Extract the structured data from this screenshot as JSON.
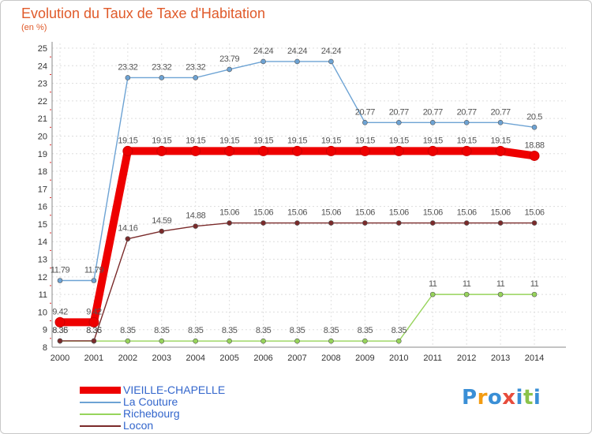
{
  "chart_data": {
    "type": "line",
    "title": "Evolution du Taux de Taxe d'Habitation",
    "subtitle": "(en %)",
    "xlabel": "",
    "ylabel": "",
    "categories": [
      "2000",
      "2001",
      "2002",
      "2003",
      "2004",
      "2005",
      "2006",
      "2007",
      "2008",
      "2009",
      "2010",
      "2011",
      "2012",
      "2013",
      "2014"
    ],
    "ylim": [
      8,
      25
    ],
    "yticks": [
      "8",
      "9",
      "10",
      "11",
      "12",
      "13",
      "14",
      "15",
      "16",
      "17",
      "18",
      "19",
      "20",
      "21",
      "22",
      "23",
      "24",
      "25"
    ],
    "grid": true,
    "legend_position": "bottom-left",
    "series": [
      {
        "name": "La Couture",
        "color": "#6da3d4",
        "values": [
          11.79,
          11.79,
          23.32,
          23.32,
          23.32,
          23.79,
          24.24,
          24.24,
          24.24,
          20.77,
          20.77,
          20.77,
          20.77,
          20.77,
          20.5
        ],
        "labels": [
          "11.79",
          "11.79",
          "23.32",
          "23.32",
          "23.32",
          "23.79",
          "24.24",
          "24.24",
          "24.24",
          "20.77",
          "20.77",
          "20.77",
          "20.77",
          "20.77",
          "20.5"
        ]
      },
      {
        "name": "Richebourg",
        "color": "#97d45b",
        "values": [
          8.35,
          8.35,
          8.35,
          8.35,
          8.35,
          8.35,
          8.35,
          8.35,
          8.35,
          8.35,
          8.35,
          11,
          11,
          11,
          11
        ],
        "labels": [
          "8.35",
          "8.35",
          "8.35",
          "8.35",
          "8.35",
          "8.35",
          "8.35",
          "8.35",
          "8.35",
          "8.35",
          "8.35",
          "11",
          "11",
          "11",
          "11"
        ]
      },
      {
        "name": "Locon",
        "color": "#7a2a2a",
        "values": [
          8.36,
          8.36,
          14.16,
          14.59,
          14.88,
          15.06,
          15.06,
          15.06,
          15.06,
          15.06,
          15.06,
          15.06,
          15.06,
          15.06,
          15.06
        ],
        "labels": [
          "8.36",
          "8.36",
          "14.16",
          "14.59",
          "14.88",
          "15.06",
          "15.06",
          "15.06",
          "15.06",
          "15.06",
          "15.06",
          "15.06",
          "15.06",
          "15.06",
          "15.06"
        ]
      },
      {
        "name": "VIEILLE-CHAPELLE",
        "color": "#ee0000",
        "values": [
          9.42,
          9.42,
          19.15,
          19.15,
          19.15,
          19.15,
          19.15,
          19.15,
          19.15,
          19.15,
          19.15,
          19.15,
          19.15,
          19.15,
          18.88
        ],
        "labels": [
          "9.42",
          "9.42",
          "19.15",
          "19.15",
          "19.15",
          "19.15",
          "19.15",
          "19.15",
          "19.15",
          "19.15",
          "19.15",
          "19.15",
          "19.15",
          "19.15",
          "18.88"
        ]
      }
    ],
    "legend": [
      {
        "name": "VIEILLE-CHAPELLE",
        "color": "#ee0000",
        "text_color": "#3366cc"
      },
      {
        "name": "La Couture",
        "color": "#6da3d4",
        "text_color": "#3366cc"
      },
      {
        "name": "Richebourg",
        "color": "#97d45b",
        "text_color": "#3366cc"
      },
      {
        "name": "Locon",
        "color": "#7a2a2a",
        "text_color": "#3366cc"
      }
    ]
  },
  "brand": {
    "letters": [
      "P",
      "r",
      "o",
      "x",
      "i",
      "t",
      "i"
    ],
    "colors": [
      "#3a8fd6",
      "#f39c12",
      "#3a8fd6",
      "#e74c3c",
      "#3a8fd6",
      "#8bc34a",
      "#3a8fd6"
    ]
  }
}
